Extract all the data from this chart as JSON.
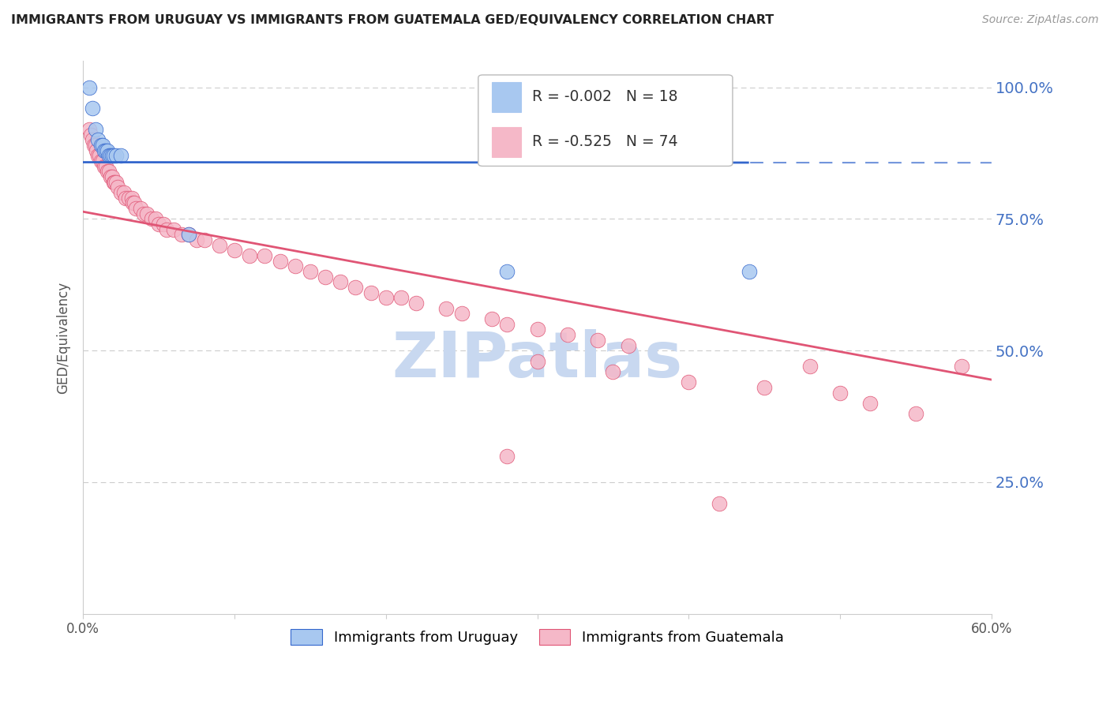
{
  "title": "IMMIGRANTS FROM URUGUAY VS IMMIGRANTS FROM GUATEMALA GED/EQUIVALENCY CORRELATION CHART",
  "source": "Source: ZipAtlas.com",
  "ylabel": "GED/Equivalency",
  "xlim": [
    0.0,
    0.6
  ],
  "ylim": [
    0.0,
    1.05
  ],
  "legend_r1_val": "-0.002",
  "legend_n1_val": "18",
  "legend_r2_val": "-0.525",
  "legend_n2_val": "74",
  "legend_label1": "Immigrants from Uruguay",
  "legend_label2": "Immigrants from Guatemala",
  "color_uruguay": "#a8c8f0",
  "color_guatemala": "#f5b8c8",
  "trendline_color_uruguay": "#3366cc",
  "trendline_color_guatemala": "#e05575",
  "watermark": "ZIPatlas",
  "watermark_color": "#c8d8f0",
  "background_color": "#ffffff",
  "grid_color": "#cccccc",
  "uruguay_x": [
    0.004,
    0.006,
    0.008,
    0.01,
    0.012,
    0.013,
    0.014,
    0.015,
    0.016,
    0.017,
    0.018,
    0.019,
    0.02,
    0.022,
    0.025,
    0.07,
    0.28,
    0.44
  ],
  "uruguay_y": [
    1.0,
    0.96,
    0.92,
    0.9,
    0.89,
    0.89,
    0.88,
    0.88,
    0.88,
    0.87,
    0.87,
    0.87,
    0.87,
    0.87,
    0.87,
    0.72,
    0.65,
    0.65
  ],
  "guatemala_x": [
    0.004,
    0.005,
    0.006,
    0.007,
    0.008,
    0.009,
    0.01,
    0.011,
    0.012,
    0.013,
    0.014,
    0.015,
    0.016,
    0.017,
    0.018,
    0.019,
    0.02,
    0.021,
    0.022,
    0.023,
    0.025,
    0.027,
    0.028,
    0.03,
    0.032,
    0.033,
    0.034,
    0.035,
    0.038,
    0.04,
    0.042,
    0.045,
    0.048,
    0.05,
    0.053,
    0.055,
    0.06,
    0.065,
    0.07,
    0.075,
    0.08,
    0.09,
    0.1,
    0.11,
    0.12,
    0.13,
    0.14,
    0.15,
    0.16,
    0.17,
    0.18,
    0.19,
    0.2,
    0.21,
    0.22,
    0.24,
    0.25,
    0.27,
    0.28,
    0.3,
    0.32,
    0.34,
    0.36,
    0.3,
    0.35,
    0.4,
    0.45,
    0.48,
    0.5,
    0.52,
    0.55,
    0.58,
    0.28,
    0.42
  ],
  "guatemala_y": [
    0.92,
    0.91,
    0.9,
    0.89,
    0.89,
    0.88,
    0.87,
    0.87,
    0.86,
    0.86,
    0.85,
    0.85,
    0.84,
    0.84,
    0.83,
    0.83,
    0.82,
    0.82,
    0.82,
    0.81,
    0.8,
    0.8,
    0.79,
    0.79,
    0.79,
    0.78,
    0.78,
    0.77,
    0.77,
    0.76,
    0.76,
    0.75,
    0.75,
    0.74,
    0.74,
    0.73,
    0.73,
    0.72,
    0.72,
    0.71,
    0.71,
    0.7,
    0.69,
    0.68,
    0.68,
    0.67,
    0.66,
    0.65,
    0.64,
    0.63,
    0.62,
    0.61,
    0.6,
    0.6,
    0.59,
    0.58,
    0.57,
    0.56,
    0.55,
    0.54,
    0.53,
    0.52,
    0.51,
    0.48,
    0.46,
    0.44,
    0.43,
    0.47,
    0.42,
    0.4,
    0.38,
    0.47,
    0.3,
    0.21
  ]
}
